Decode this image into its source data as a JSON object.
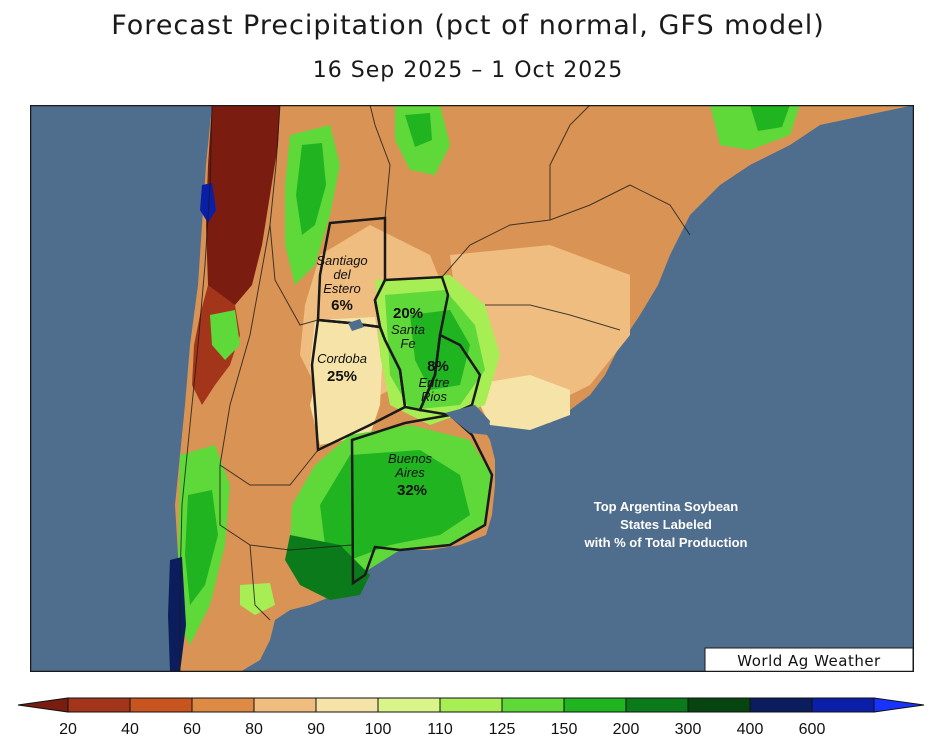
{
  "title": "Forecast Precipitation (pct of normal, GFS model)",
  "subtitle": "16 Sep 2025 – 1 Oct 2025",
  "credit": "World Ag Weather",
  "note_lines": [
    "Top Argentina Soybean",
    "States Labeled",
    "with % of Total Production"
  ],
  "provinces": [
    {
      "name_lines": [
        "Santiago",
        "del",
        "Estero"
      ],
      "pct": "6%"
    },
    {
      "name_lines": [
        "Santa",
        "Fe"
      ],
      "pct": "20%"
    },
    {
      "name_lines": [
        "Cordoba"
      ],
      "pct": "25%"
    },
    {
      "name_lines": [
        "Entre",
        "Rios"
      ],
      "pct": "8%"
    },
    {
      "name_lines": [
        "Buenos",
        "Aires"
      ],
      "pct": "32%"
    }
  ],
  "legend": {
    "ticks": [
      "20",
      "40",
      "60",
      "80",
      "90",
      "100",
      "110",
      "125",
      "150",
      "200",
      "300",
      "400",
      "600"
    ],
    "colors": [
      "#7a1c10",
      "#a3361a",
      "#c8551f",
      "#dd8a45",
      "#efbd7f",
      "#f6e3a8",
      "#d9f58a",
      "#a7ee55",
      "#5fd83a",
      "#20b420",
      "#0b7a1a",
      "#064510",
      "#0b1d5c",
      "#0a1ea8",
      "#1833ff"
    ]
  },
  "colors": {
    "ocean": "#4f6d8c",
    "land_dry": "#d4894a",
    "land_normal": "#f2d59b",
    "land_wet": "#34c22e",
    "land_verywet": "#0f6a1c",
    "border": "#1a1a1a"
  }
}
